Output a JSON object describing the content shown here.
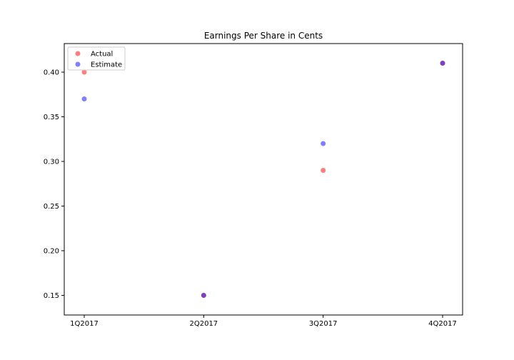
{
  "chart_data": {
    "type": "scatter",
    "title": "Earnings Per Share in Cents",
    "xlabel": "",
    "ylabel": "",
    "categories": [
      "1Q2017",
      "2Q2017",
      "3Q2017",
      "4Q2017"
    ],
    "series": [
      {
        "name": "Actual",
        "color": "#ff0000",
        "values": [
          0.4,
          0.15,
          0.29,
          0.41
        ]
      },
      {
        "name": "Estimate",
        "color": "#0000ff",
        "values": [
          0.37,
          0.15,
          0.32,
          0.41
        ]
      }
    ],
    "point_alpha": 0.5,
    "ylim": [
      0.128,
      0.432
    ],
    "yticks": [
      0.15,
      0.2,
      0.25,
      0.3,
      0.35,
      0.4
    ],
    "ytick_labels": [
      "0.15",
      "0.20",
      "0.25",
      "0.30",
      "0.35",
      "0.40"
    ],
    "grid": false,
    "legend_position": "upper-left"
  }
}
